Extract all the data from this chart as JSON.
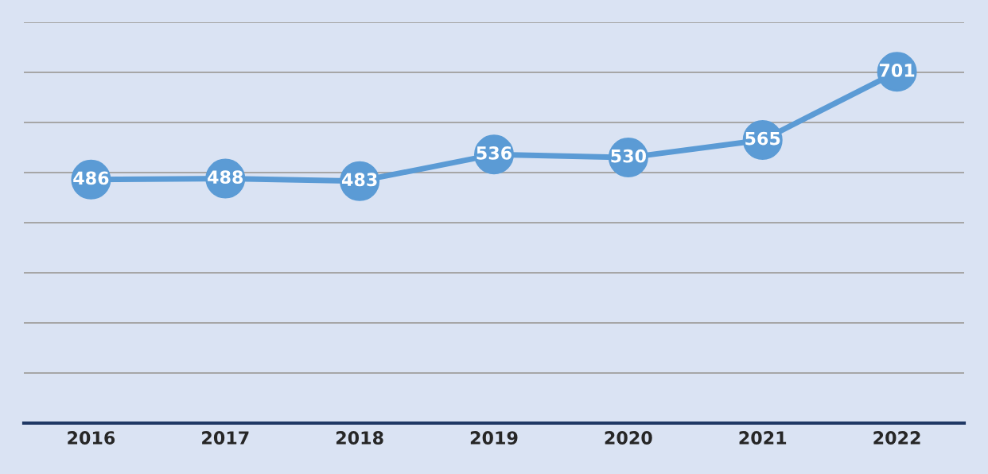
{
  "chart_data": {
    "type": "line",
    "categories": [
      "2016",
      "2017",
      "2018",
      "2019",
      "2020",
      "2021",
      "2022"
    ],
    "series": [
      {
        "color": "#5b9bd5",
        "values": [
          486,
          488,
          483,
          536,
          530,
          565,
          701
        ]
      }
    ],
    "ylim": [
      0,
      800
    ],
    "yticks": [
      {
        "value": 0,
        "label": null
      },
      {
        "value": 100,
        "label": null
      },
      {
        "value": 200,
        "label": null
      },
      {
        "value": 300,
        "label": null
      },
      {
        "value": 400,
        "label": null
      },
      {
        "value": 500,
        "label": null
      },
      {
        "value": 600,
        "label": null
      },
      {
        "value": 700,
        "label": null
      },
      {
        "value": 800,
        "label": null
      }
    ],
    "tick_labels": "x",
    "grid": "y",
    "data_labels": true,
    "marker": "circle",
    "line_style": "solid"
  }
}
